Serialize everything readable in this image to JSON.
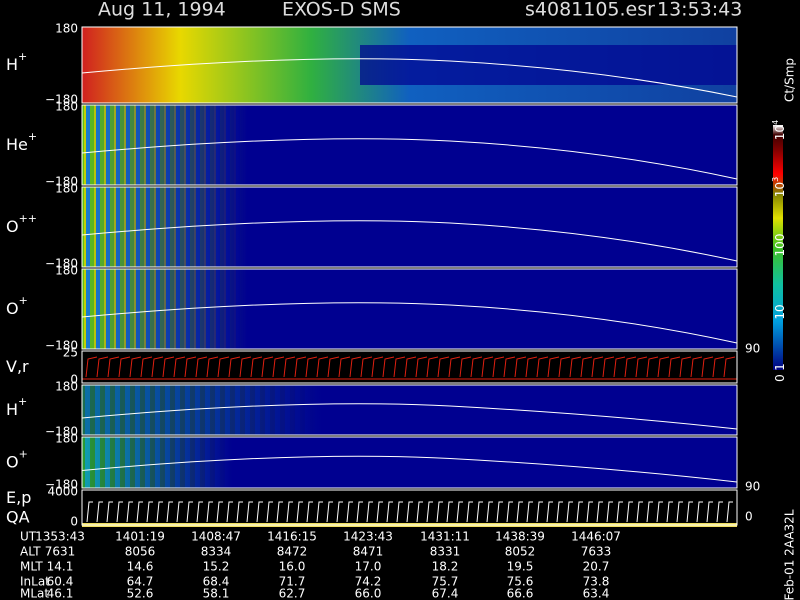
{
  "header": {
    "date": "Aug 11, 1994",
    "instrument": "EXOS-D SMS",
    "file": "s4081105.esr",
    "time": "13:53:43"
  },
  "panels": [
    {
      "label": "H",
      "sup": "+",
      "ticks": [
        "180",
        "−180"
      ]
    },
    {
      "label": "He",
      "sup": "+",
      "ticks": [
        "180",
        "−180"
      ]
    },
    {
      "label": "O",
      "sup": "++",
      "ticks": [
        "180",
        "−180"
      ]
    },
    {
      "label": "O",
      "sup": "+",
      "ticks": [
        "180",
        "−180"
      ]
    },
    {
      "label": "V,r",
      "ticks": [
        "25",
        "0"
      ],
      "right_ticks": [
        "90"
      ]
    },
    {
      "label": "H",
      "sup": "+",
      "ticks": [
        "180",
        "−180"
      ]
    },
    {
      "label": "O",
      "sup": "+",
      "ticks": [
        "180",
        "−180"
      ],
      "right_ticks": [
        "90"
      ]
    },
    {
      "label": "E,p",
      "label2": "QA",
      "ticks": [
        "4000",
        "0"
      ],
      "right_ticks": [
        "0"
      ]
    }
  ],
  "colorbar": {
    "unit": "Ct/Smp",
    "ticks": [
      {
        "base": "10",
        "exp": "4"
      },
      {
        "base": "10",
        "exp": "3"
      },
      {
        "base": "100"
      },
      {
        "base": "10"
      },
      {
        "base": "1"
      },
      {
        "base": "0"
      }
    ]
  },
  "table": {
    "labels": [
      "UT",
      "ALT",
      "MLT",
      "InLat",
      "MLat"
    ],
    "rows": [
      [
        "1353:43",
        "1401:19",
        "1408:47",
        "1416:15",
        "1423:43",
        "1431:11",
        "1438:39",
        "1446:07"
      ],
      [
        "7631",
        "8056",
        "8334",
        "8472",
        "8471",
        "8331",
        "8052",
        "7633"
      ],
      [
        "14.1",
        "14.6",
        "15.2",
        "16.0",
        "17.0",
        "18.2",
        "19.5",
        "20.7"
      ],
      [
        "60.4",
        "64.7",
        "68.4",
        "71.7",
        "74.2",
        "75.7",
        "75.6",
        "73.8"
      ],
      [
        "46.1",
        "52.6",
        "58.1",
        "62.7",
        "66.0",
        "67.4",
        "66.6",
        "63.4"
      ]
    ]
  },
  "footer": "Feb-01 2AA32L"
}
